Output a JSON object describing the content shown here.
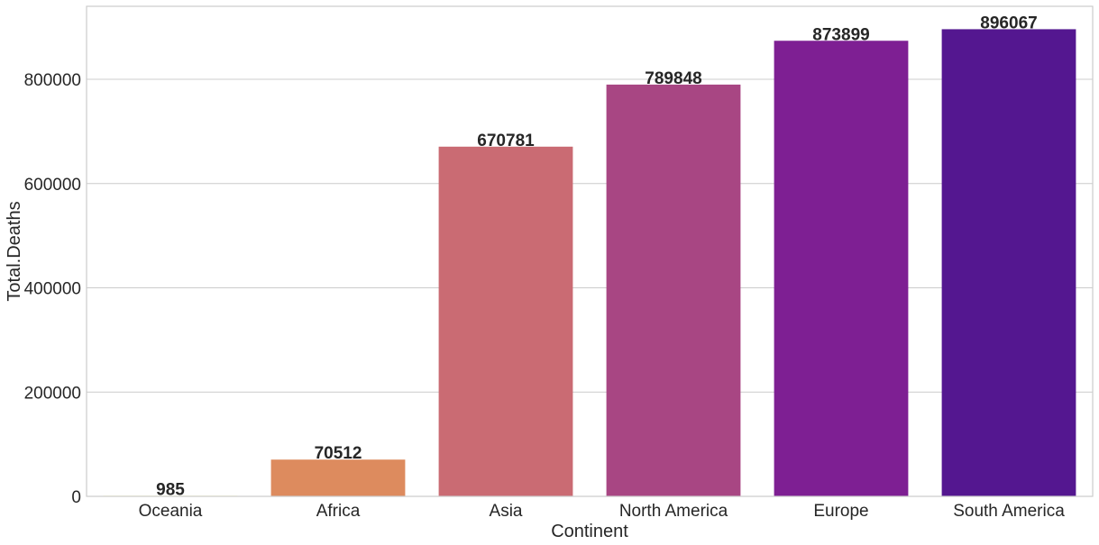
{
  "chart_data": {
    "type": "bar",
    "xlabel": "Continent",
    "ylabel": "Total.Deaths",
    "categories": [
      "Oceania",
      "Africa",
      "Asia",
      "North America",
      "Europe",
      "South America"
    ],
    "values": [
      985,
      70512,
      670781,
      789848,
      873899,
      896067
    ],
    "data_labels": [
      "985",
      "70512",
      "670781",
      "789848",
      "873899",
      "896067"
    ],
    "colors": [
      "#f0f921",
      "#dd8b5e",
      "#ca6b73",
      "#a84683",
      "#7e1f93",
      "#541790"
    ],
    "yticks": [
      0,
      200000,
      400000,
      600000,
      800000
    ],
    "ytick_labels": [
      "0",
      "200000",
      "400000",
      "600000",
      "800000"
    ],
    "ylim": [
      0,
      940000
    ],
    "grid": true,
    "legend": "none"
  }
}
